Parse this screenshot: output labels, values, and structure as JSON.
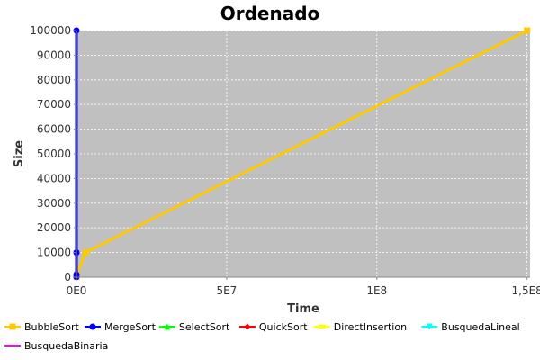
{
  "chart_data": {
    "type": "line",
    "title": "Ordenado",
    "xlabel": "Time",
    "ylabel": "Size",
    "xlim": [
      0,
      151000000
    ],
    "ylim": [
      0,
      100000
    ],
    "x_ticks": [
      0,
      50000000,
      100000000,
      150000000
    ],
    "x_tick_labels": [
      "0E0",
      "5E7",
      "1E8",
      "1,5E8"
    ],
    "y_ticks": [
      0,
      10000,
      20000,
      30000,
      40000,
      50000,
      60000,
      70000,
      80000,
      90000,
      100000
    ],
    "y_tick_labels": [
      "0",
      "10000",
      "20000",
      "30000",
      "40000",
      "50000",
      "60000",
      "70000",
      "80000",
      "90000",
      "100000"
    ],
    "grid": true,
    "legend_position": "bottom",
    "series": [
      {
        "name": "BubbleSort",
        "color": "#FFC800",
        "marker": "square",
        "x": [
          0,
          100000,
          3000000,
          150000000
        ],
        "y": [
          100,
          1000,
          10000,
          100000
        ]
      },
      {
        "name": "MergeSort",
        "color": "#0000FF",
        "marker": "circle",
        "x": [
          0,
          0,
          0,
          0
        ],
        "y": [
          100,
          1000,
          10000,
          100000
        ]
      },
      {
        "name": "SelectSort",
        "color": "#00FF00",
        "marker": "triangle-up",
        "x": [],
        "y": []
      },
      {
        "name": "QuickSort",
        "color": "#FF0000",
        "marker": "diamond",
        "x": [],
        "y": []
      },
      {
        "name": "DirectInsertion",
        "color": "#FFFF00",
        "marker": "rect",
        "x": [],
        "y": []
      },
      {
        "name": "BusquedaLineal",
        "color": "#00FFFF",
        "marker": "triangle-down",
        "x": [],
        "y": []
      },
      {
        "name": "BusquedaBinaria",
        "color": "#FF00FF",
        "marker": "hline",
        "x": [],
        "y": []
      }
    ],
    "colors": {
      "plot_background": "#C0C0C0",
      "gridline": "#FFFFFF",
      "axis": "#888888",
      "text": "#333333",
      "title": "#000000"
    }
  }
}
